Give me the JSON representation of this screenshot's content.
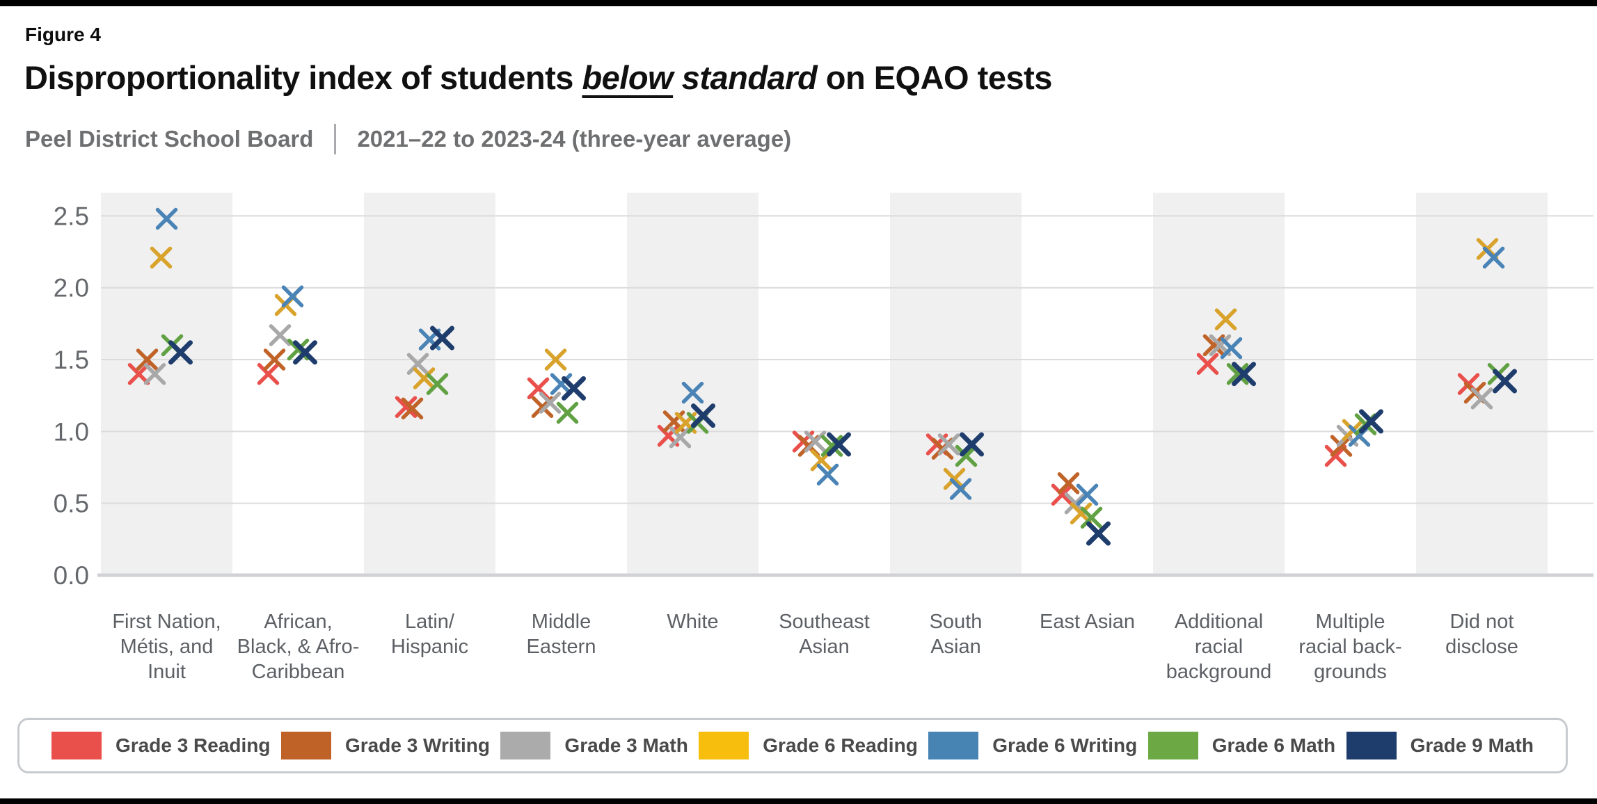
{
  "figure_label": "Figure 4",
  "title": {
    "prefix": "Disproportionality index of students ",
    "below": "below",
    "standard": " standard",
    "suffix": " on EQAO tests"
  },
  "subtitle": {
    "board": "Peel District School Board",
    "period": "2021–22 to 2023-24 (three-year average)"
  },
  "chart_data": {
    "type": "scatter",
    "marker": "x",
    "title": "Disproportionality index of students below standard on EQAO tests",
    "ylim": [
      0.0,
      2.5
    ],
    "yticks": [
      0.0,
      0.5,
      1.0,
      1.5,
      2.0,
      2.5
    ],
    "ytick_labels": [
      "0.0",
      "0.5",
      "1.0",
      "1.5",
      "2.0",
      "2.5"
    ],
    "grid": true,
    "band_shading": "alternating-gray-columns",
    "legend_position": "bottom",
    "categories": [
      {
        "label": "First Nation, Métis, and Inuit",
        "lines": [
          "First Nation,",
          "Métis, and",
          "Inuit"
        ]
      },
      {
        "label": "African, Black, & Afro-Caribbean",
        "lines": [
          "African,",
          "Black, & Afro-",
          "Caribbean"
        ]
      },
      {
        "label": "Latin/Hispanic",
        "lines": [
          "Latin/",
          "Hispanic"
        ]
      },
      {
        "label": "Middle Eastern",
        "lines": [
          "Middle",
          "Eastern"
        ]
      },
      {
        "label": "White",
        "lines": [
          "White"
        ]
      },
      {
        "label": "Southeast Asian",
        "lines": [
          "Southeast",
          "Asian"
        ]
      },
      {
        "label": "South Asian",
        "lines": [
          "South",
          "Asian"
        ]
      },
      {
        "label": "East Asian",
        "lines": [
          "East Asian"
        ]
      },
      {
        "label": "Additional racial background",
        "lines": [
          "Additional",
          "racial",
          "background"
        ]
      },
      {
        "label": "Multiple racial back-grounds",
        "lines": [
          "Multiple",
          "racial back-",
          "grounds"
        ]
      },
      {
        "label": "Did not disclose",
        "lines": [
          "Did not",
          "disclose"
        ]
      }
    ],
    "series": [
      {
        "name": "Grade 3 Reading",
        "color": "#E9504C",
        "legend_color": "#EA504B",
        "values": [
          1.4,
          1.4,
          1.17,
          1.3,
          0.97,
          0.93,
          0.91,
          0.56,
          1.47,
          0.83,
          1.33
        ]
      },
      {
        "name": "Grade 3 Writing",
        "color": "#C06328",
        "legend_color": "#BE6227",
        "values": [
          1.5,
          1.5,
          1.16,
          1.17,
          1.07,
          0.9,
          0.88,
          0.64,
          1.6,
          0.9,
          1.27
        ]
      },
      {
        "name": "Grade 3 Math",
        "color": "#A8A8A8",
        "legend_color": "#ABABAB",
        "values": [
          1.4,
          1.67,
          1.47,
          1.2,
          0.96,
          0.93,
          0.91,
          0.5,
          1.6,
          0.97,
          1.23
        ]
      },
      {
        "name": "Grade 6 Reading",
        "color": "#D9A32B",
        "legend_color": "#F7BE0E",
        "values": [
          2.21,
          1.88,
          1.37,
          1.5,
          1.06,
          0.8,
          0.67,
          0.43,
          1.78,
          1.01,
          2.27
        ]
      },
      {
        "name": "Grade 6 Writing",
        "color": "#4A83B5",
        "legend_color": "#4784B4",
        "values": [
          2.48,
          1.94,
          1.64,
          1.33,
          1.27,
          0.7,
          0.6,
          0.56,
          1.58,
          0.97,
          2.21
        ]
      },
      {
        "name": "Grade 6 Math",
        "color": "#61A143",
        "legend_color": "#6CA844",
        "values": [
          1.6,
          1.57,
          1.33,
          1.13,
          1.06,
          0.9,
          0.83,
          0.4,
          1.4,
          1.05,
          1.4
        ]
      },
      {
        "name": "Grade 9 Math",
        "color": "#1F3D6C",
        "legend_color": "#1E3D6C",
        "values": [
          1.55,
          1.55,
          1.65,
          1.3,
          1.11,
          0.91,
          0.91,
          0.29,
          1.4,
          1.07,
          1.35
        ]
      }
    ],
    "x_offsets": [
      [
        -40,
        -28,
        -17,
        -8,
        0,
        8,
        20
      ],
      [
        -43,
        -34,
        -26,
        -18,
        -8,
        0,
        10
      ],
      [
        -34,
        -25,
        -17,
        -8,
        0,
        11,
        18
      ],
      [
        -33,
        -27,
        -16,
        -8,
        0,
        9,
        18
      ],
      [
        -35,
        -27,
        -18,
        -10,
        0,
        7,
        15
      ],
      [
        -30,
        -22,
        -13,
        -4,
        5,
        11,
        21
      ],
      [
        -27,
        -19,
        -10,
        -2,
        7,
        15,
        23
      ],
      [
        -36,
        -27,
        -17,
        -9,
        0,
        6,
        16
      ],
      [
        -16,
        -7,
        2,
        10,
        18,
        27,
        36
      ],
      [
        -21,
        -13,
        -4,
        4,
        13,
        22,
        30
      ],
      [
        -19,
        -10,
        0,
        8,
        17,
        24,
        33
      ]
    ]
  }
}
